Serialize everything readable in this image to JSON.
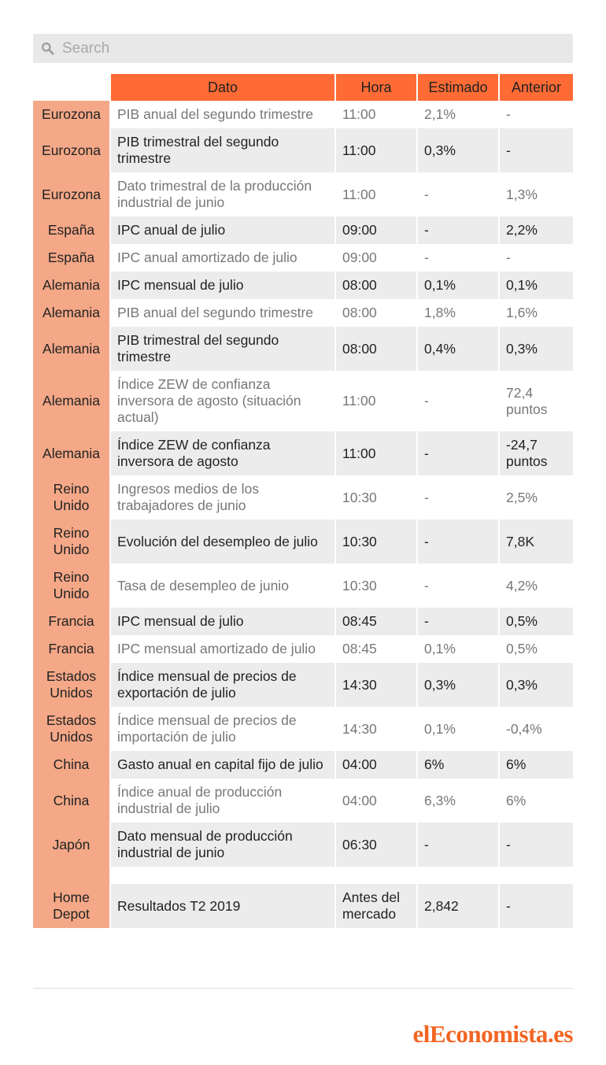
{
  "search": {
    "placeholder": "Search",
    "value": ""
  },
  "table": {
    "headers": {
      "dato": "Dato",
      "hora": "Hora",
      "estimado": "Estimado",
      "anterior": "Anterior"
    },
    "rows": [
      {
        "country": "Eurozona",
        "dato": "PIB anual del segundo trimestre",
        "hora": "11:00",
        "estimado": "2,1%",
        "anterior": "-"
      },
      {
        "country": "Eurozona",
        "dato": "PIB trimestral del segundo trimestre",
        "hora": "11:00",
        "estimado": "0,3%",
        "anterior": "-"
      },
      {
        "country": "Eurozona",
        "dato": "Dato trimestral de la producción industrial de junio",
        "hora": "11:00",
        "estimado": "-",
        "anterior": "1,3%"
      },
      {
        "country": "España",
        "dato": "IPC anual de julio",
        "hora": "09:00",
        "estimado": "-",
        "anterior": "2,2%"
      },
      {
        "country": "España",
        "dato": "IPC anual amortizado de julio",
        "hora": "09:00",
        "estimado": "-",
        "anterior": "-"
      },
      {
        "country": "Alemania",
        "dato": "IPC mensual de julio",
        "hora": "08:00",
        "estimado": "0,1%",
        "anterior": "0,1%"
      },
      {
        "country": "Alemania",
        "dato": "PIB anual del segundo trimestre",
        "hora": "08:00",
        "estimado": "1,8%",
        "anterior": "1,6%"
      },
      {
        "country": "Alemania",
        "dato": "PIB trimestral del segundo trimestre",
        "hora": "08:00",
        "estimado": "0,4%",
        "anterior": "0,3%"
      },
      {
        "country": "Alemania",
        "dato": "Índice ZEW de confianza inversora de agosto (situación actual)",
        "hora": "11:00",
        "estimado": "-",
        "anterior": "72,4 puntos"
      },
      {
        "country": "Alemania",
        "dato": "Índice ZEW de confianza inversora de agosto",
        "hora": "11:00",
        "estimado": "-",
        "anterior": "-24,7 puntos"
      },
      {
        "country": "Reino Unido",
        "dato": "Ingresos medios de los trabajadores de junio",
        "hora": "10:30",
        "estimado": "-",
        "anterior": "2,5%"
      },
      {
        "country": "Reino Unido",
        "dato": "Evolución del desempleo de julio",
        "hora": "10:30",
        "estimado": "-",
        "anterior": "7,8K"
      },
      {
        "country": "Reino Unido",
        "dato": "Tasa de desempleo de junio",
        "hora": "10:30",
        "estimado": "-",
        "anterior": "4,2%"
      },
      {
        "country": "Francia",
        "dato": "IPC mensual de julio",
        "hora": "08:45",
        "estimado": "-",
        "anterior": "0,5%"
      },
      {
        "country": "Francia",
        "dato": "IPC mensual amortizado de julio",
        "hora": "08:45",
        "estimado": "0,1%",
        "anterior": "0,5%"
      },
      {
        "country": "Estados Unidos",
        "dato": "Índice mensual de precios de exportación de julio",
        "hora": "14:30",
        "estimado": "0,3%",
        "anterior": "0,3%"
      },
      {
        "country": "Estados Unidos",
        "dato": "Índice mensual de precios de importación de julio",
        "hora": "14:30",
        "estimado": "0,1%",
        "anterior": "-0,4%"
      },
      {
        "country": "China",
        "dato": "Gasto anual en capital fijo de julio",
        "hora": "04:00",
        "estimado": "6%",
        "anterior": "6%"
      },
      {
        "country": "China",
        "dato": "Índice anual de producción industrial de julio",
        "hora": "04:00",
        "estimado": "6,3%",
        "anterior": "6%"
      },
      {
        "country": "Japón",
        "dato": "Dato mensual de producción industrial de junio",
        "hora": "06:30",
        "estimado": "-",
        "anterior": "-"
      }
    ],
    "extra_row": {
      "country": "Home Depot",
      "dato": "Resultados T2 2019",
      "hora": "Antes del mercado",
      "estimado": "2,842",
      "anterior": "-"
    }
  },
  "logo": {
    "part1": "el",
    "part2": "E",
    "part3": "conomista.es"
  },
  "colors": {
    "header": "#ff6b35",
    "country": "#f4a887",
    "stripe": "#ececec",
    "logo": "#f26522"
  },
  "icons": {
    "search": "search-icon"
  }
}
